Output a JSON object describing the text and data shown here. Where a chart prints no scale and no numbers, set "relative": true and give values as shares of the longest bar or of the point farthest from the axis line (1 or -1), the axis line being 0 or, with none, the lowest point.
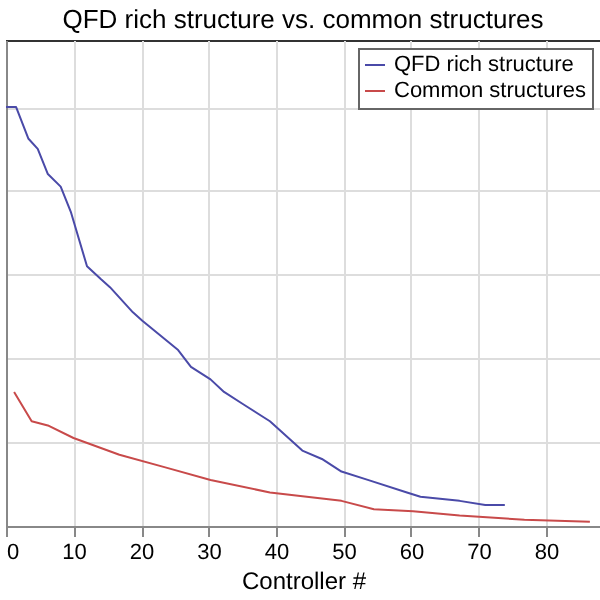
{
  "chart_data": {
    "type": "line",
    "title": "QFD rich structure vs. common structures",
    "xlabel": "Controller #",
    "relative": true,
    "xlim": [
      0,
      88
    ],
    "xticks": [
      0,
      10,
      20,
      30,
      40,
      50,
      60,
      70,
      80
    ],
    "grid": true,
    "legend": "top right",
    "series": [
      {
        "name": "QFD rich structure",
        "color": "#4a4aa8",
        "x": [
          0,
          1.5,
          3.3,
          4.7,
          6.2,
          8.1,
          9.6,
          12,
          14,
          15.4,
          18.8,
          20.2,
          25.5,
          27.4,
          30.3,
          32.3,
          35.2,
          39.1,
          43.9,
          46.8,
          49.7,
          53.6,
          59.4,
          61.4,
          67.2,
          71,
          73.9
        ],
        "values": [
          1,
          1,
          0.925,
          0.9,
          0.84,
          0.81,
          0.75,
          0.62,
          0.59,
          0.57,
          0.51,
          0.49,
          0.42,
          0.38,
          0.35,
          0.32,
          0.29,
          0.25,
          0.18,
          0.16,
          0.13,
          0.11,
          0.08,
          0.07,
          0.06,
          0.05,
          0.05
        ]
      },
      {
        "name": "Common structures",
        "color": "#c84a4a",
        "x": [
          1.2,
          3.8,
          6.2,
          10,
          16.8,
          23.6,
          30.3,
          39.1,
          49.7,
          54.5,
          60.3,
          67.2,
          76.8,
          86.5
        ],
        "values": [
          0.32,
          0.25,
          0.24,
          0.21,
          0.17,
          0.14,
          0.11,
          0.08,
          0.06,
          0.04,
          0.035,
          0.025,
          0.015,
          0.01
        ]
      }
    ]
  }
}
